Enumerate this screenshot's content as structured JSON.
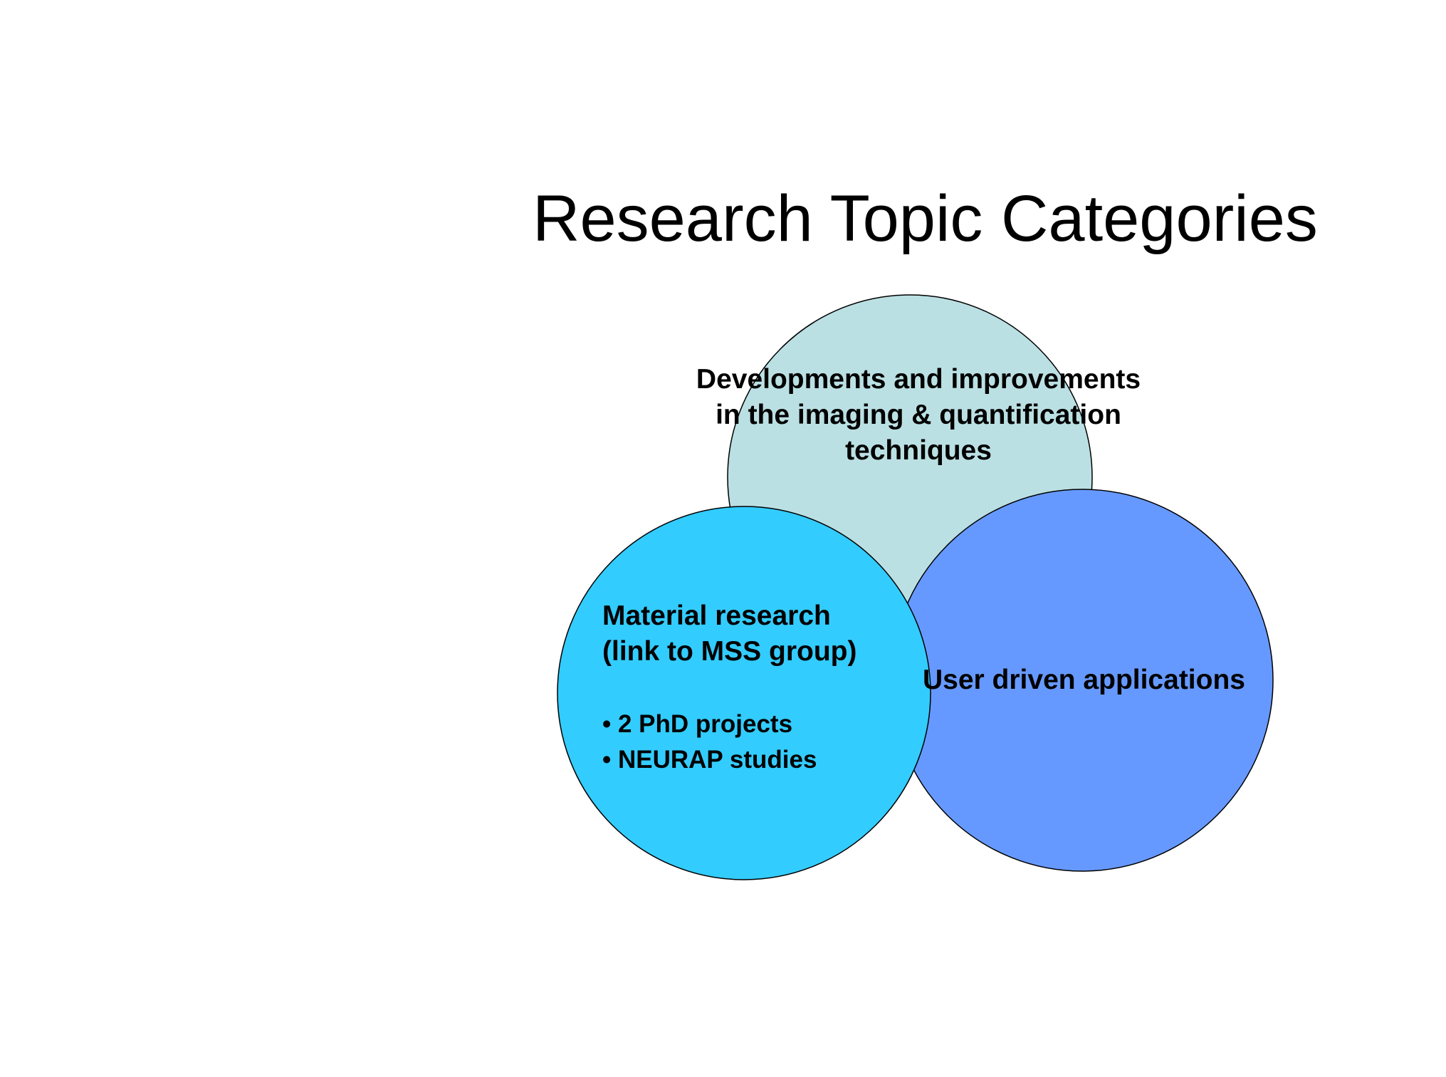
{
  "slide": {
    "title": "Research Topic Categories"
  },
  "diagram": {
    "circles": [
      {
        "id": "top",
        "fill": "#BBE0E3",
        "lines": [
          "Developments and improvements",
          "in the imaging & quantification",
          "techniques"
        ]
      },
      {
        "id": "left",
        "fill": "#33CCFF",
        "lines": [
          "Material research",
          "(link to MSS group)"
        ],
        "bullets": [
          "2 PhD projects",
          "NEURAP studies"
        ]
      },
      {
        "id": "right",
        "fill": "#6699FF",
        "lines": [
          "User driven applications"
        ]
      }
    ],
    "outline_color": "#000000"
  }
}
